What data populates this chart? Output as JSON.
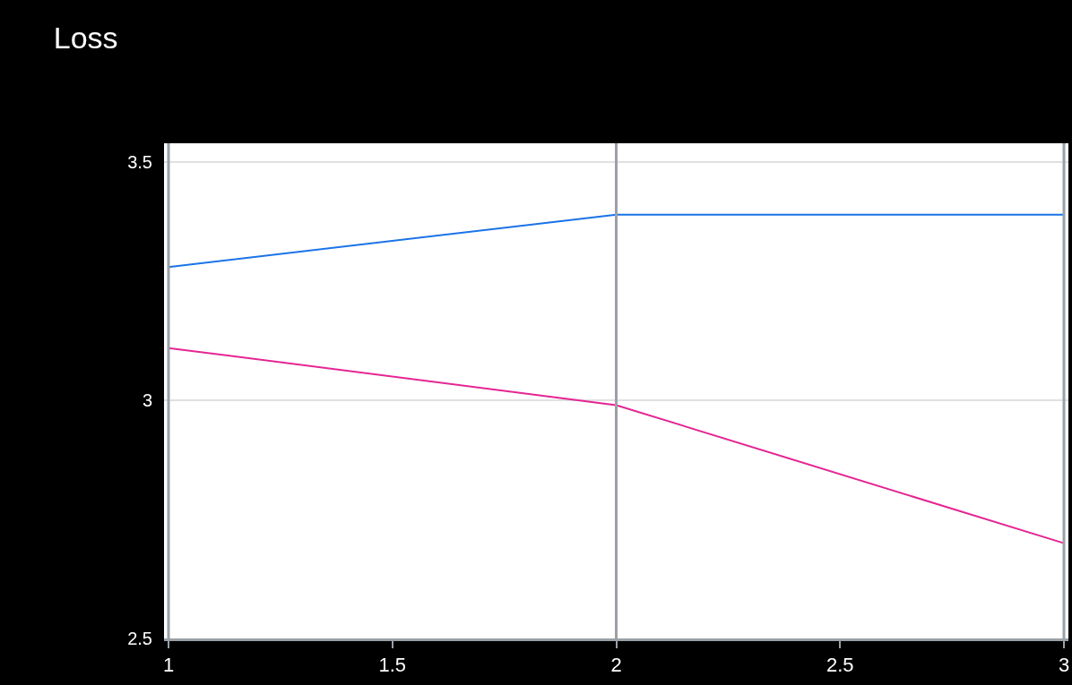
{
  "chart_data": {
    "type": "line",
    "title": "Loss",
    "x": [
      1,
      2,
      3
    ],
    "series": [
      {
        "color": "#1a73e8",
        "values": [
          3.28,
          3.39,
          3.39
        ]
      },
      {
        "color": "#e52592",
        "values": [
          3.11,
          2.99,
          2.7
        ]
      }
    ],
    "xlim": [
      0.99,
      3.01
    ],
    "xticks": [
      1,
      1.5,
      2,
      2.5,
      3
    ],
    "ylim": [
      2.5,
      3.54
    ],
    "yticks": [
      2.5,
      3,
      3.5
    ],
    "grid": "y",
    "marker": "none",
    "line_style": "solid",
    "ref_lines": [
      {
        "axis": "x",
        "value": 1,
        "color": "#9aa0a6"
      },
      {
        "axis": "x",
        "value": 2,
        "color": "#9aa0a6"
      },
      {
        "axis": "x",
        "value": 3,
        "color": "#9aa0a6"
      }
    ]
  }
}
